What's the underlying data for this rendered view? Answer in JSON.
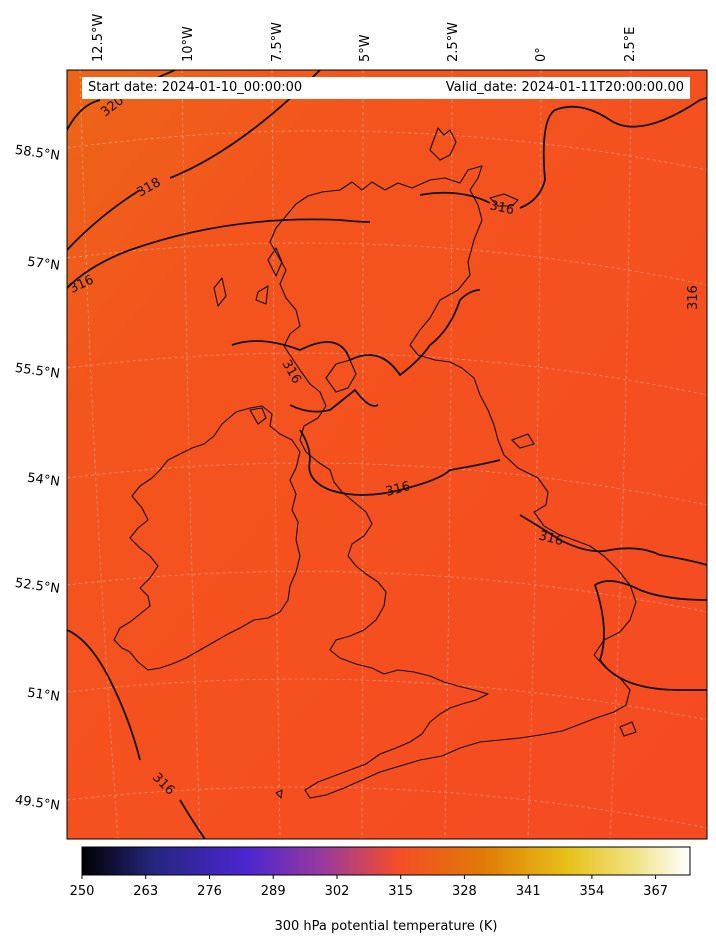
{
  "map": {
    "start_date": "Start date: 2024-01-10_00:00:00",
    "valid_date": "Valid_date: 2024-01-11T20:00:00.00",
    "variable": "300 hPa potential temperature",
    "units": "K",
    "background_color": "#F5501F",
    "longitude_labels": [
      "12.5°W",
      "10°W",
      "7.5°W",
      "5°W",
      "2.5°W",
      "0°",
      "2.5°E"
    ],
    "latitude_labels": [
      "58.5°N",
      "57°N",
      "55.5°N",
      "54°N",
      "52.5°N",
      "51°N",
      "49.5°N"
    ],
    "contour_labels": [
      "320",
      "318",
      "316",
      "316",
      "316",
      "316",
      "316",
      "316",
      "316"
    ]
  },
  "colorbar": {
    "label": "300 hPa potential temperature (K)",
    "ticks": [
      "250",
      "263",
      "276",
      "289",
      "302",
      "315",
      "328",
      "341",
      "354",
      "367"
    ],
    "range": [
      250,
      374
    ],
    "colormap": "CMRmap",
    "colors": [
      "#000000",
      "#262680",
      "#4B26D1",
      "#9B3B9B",
      "#F54D27",
      "#E07A05",
      "#E8C11A",
      "#F0E07A",
      "#FFFFFF"
    ]
  }
}
